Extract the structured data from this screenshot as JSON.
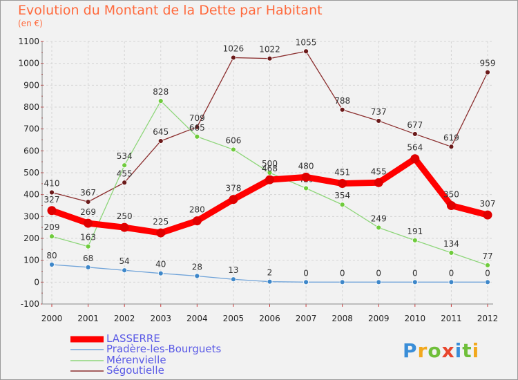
{
  "title": "Evolution du Montant de la Dette par Habitant",
  "subtitle": "(en €)",
  "logo": {
    "text": "Proxiti",
    "colors": [
      "#3a8ed8",
      "#f2a81d",
      "#6fbf3a",
      "#e8462d",
      "#3a8ed8",
      "#6fbf3a",
      "#f2a81d"
    ]
  },
  "chart_data": {
    "type": "line",
    "x": [
      "2000",
      "2001",
      "2002",
      "2003",
      "2004",
      "2005",
      "2006",
      "2007",
      "2008",
      "2009",
      "2010",
      "2011",
      "2012"
    ],
    "ylim": [
      -100,
      1100
    ],
    "yticks": [
      "1100",
      "1000",
      "900",
      "800",
      "700",
      "600",
      "500",
      "400",
      "300",
      "200",
      "100",
      "0",
      "-100"
    ],
    "grid": true,
    "legend_position": "bottom-left",
    "series": [
      {
        "name": "LASSERRE",
        "color": "#ff0000",
        "point_color": "#e00000",
        "values": [
          327,
          269,
          250,
          225,
          280,
          378,
          468,
          480,
          451,
          455,
          564,
          350,
          307
        ],
        "labels": [
          "327",
          "269",
          "250",
          "225",
          "280",
          "378",
          "468",
          "480",
          "451",
          "455",
          "564",
          "350",
          "307"
        ]
      },
      {
        "name": "Pradère-les-Bourguets",
        "color": "#6fa3d9",
        "point_color": "#3e87c9",
        "values": [
          80,
          68,
          54,
          40,
          28,
          13,
          2,
          0,
          0,
          0,
          0,
          0,
          0
        ],
        "labels": [
          "80",
          "68",
          "54",
          "40",
          "28",
          "13",
          "2",
          "0",
          "0",
          "0",
          "0",
          "0",
          "0"
        ]
      },
      {
        "name": "Mérenvielle",
        "color": "#8ed67a",
        "point_color": "#6fcb3c",
        "values": [
          209,
          163,
          534,
          828,
          665,
          606,
          500,
          429,
          354,
          249,
          191,
          134,
          77
        ],
        "labels": [
          "209",
          "163",
          "534",
          "828",
          "665",
          "606",
          "500",
          "429",
          "354",
          "249",
          "191",
          "134",
          "77"
        ]
      },
      {
        "name": "Ségoutielle",
        "color": "#8b2e2e",
        "point_color": "#6b1a1a",
        "values": [
          410,
          367,
          455,
          645,
          709,
          1026,
          1022,
          1055,
          788,
          737,
          677,
          619,
          959
        ],
        "labels": [
          "410",
          "367",
          "455",
          "645",
          "709",
          "1026",
          "1022",
          "1055",
          "788",
          "737",
          "677",
          "619",
          "959"
        ]
      }
    ]
  }
}
